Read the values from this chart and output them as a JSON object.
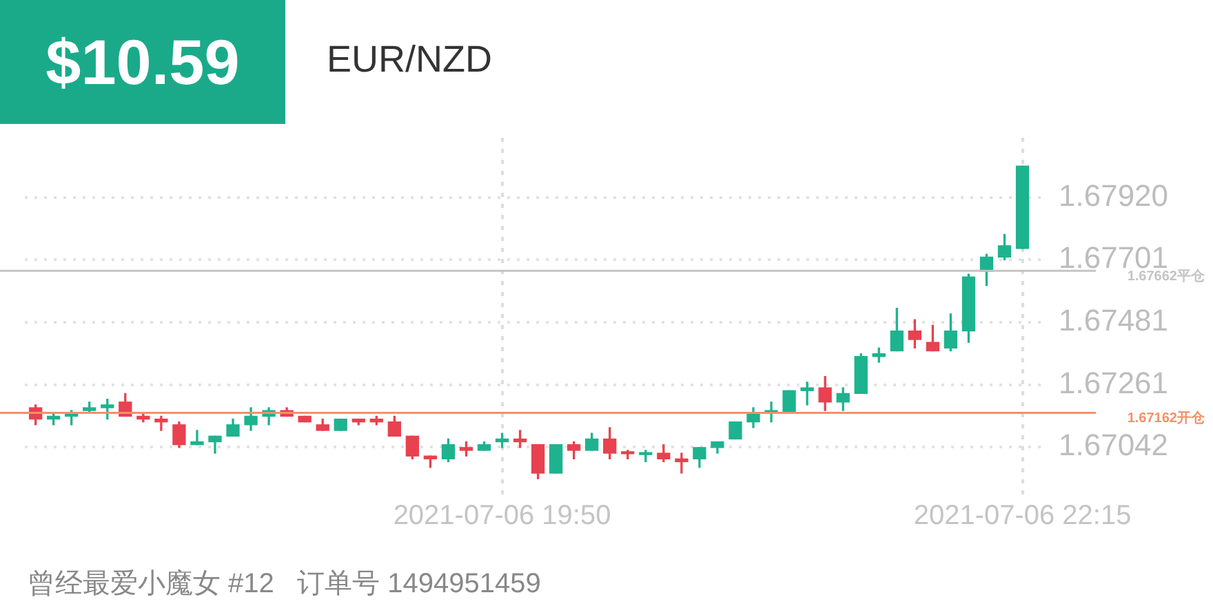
{
  "chart_data": {
    "type": "candlestick",
    "title": "EUR/NZD",
    "annotations": [
      "$10.59",
      "曾经最爱小魔女 #12   订单号 1494951459"
    ],
    "x": [
      "2021-07-06T17:40",
      "2021-07-06T17:45",
      "2021-07-06T17:50",
      "2021-07-06T17:55",
      "2021-07-06T18:00",
      "2021-07-06T18:05",
      "2021-07-06T18:10",
      "2021-07-06T18:15",
      "2021-07-06T18:20",
      "2021-07-06T18:25",
      "2021-07-06T18:30",
      "2021-07-06T18:35",
      "2021-07-06T18:40",
      "2021-07-06T18:45",
      "2021-07-06T18:50",
      "2021-07-06T18:55",
      "2021-07-06T19:00",
      "2021-07-06T19:05",
      "2021-07-06T19:10",
      "2021-07-06T19:15",
      "2021-07-06T19:20",
      "2021-07-06T19:25",
      "2021-07-06T19:30",
      "2021-07-06T19:35",
      "2021-07-06T19:40",
      "2021-07-06T19:45",
      "2021-07-06T19:50",
      "2021-07-06T19:55",
      "2021-07-06T20:00",
      "2021-07-06T20:05",
      "2021-07-06T20:10",
      "2021-07-06T20:15",
      "2021-07-06T20:20",
      "2021-07-06T20:25",
      "2021-07-06T20:30",
      "2021-07-06T20:35",
      "2021-07-06T20:40",
      "2021-07-06T20:45",
      "2021-07-06T20:50",
      "2021-07-06T20:55",
      "2021-07-06T21:00",
      "2021-07-06T21:05",
      "2021-07-06T21:10",
      "2021-07-06T21:15",
      "2021-07-06T21:20",
      "2021-07-06T21:25",
      "2021-07-06T21:30",
      "2021-07-06T21:35",
      "2021-07-06T21:40",
      "2021-07-06T21:45",
      "2021-07-06T21:50",
      "2021-07-06T21:55",
      "2021-07-06T22:00",
      "2021-07-06T22:05",
      "2021-07-06T22:10",
      "2021-07-06T22:15"
    ],
    "ohlc": [
      [
        1.6718,
        1.6719,
        1.6712,
        1.6714
      ],
      [
        1.6714,
        1.6716,
        1.6712,
        1.6715
      ],
      [
        1.6715,
        1.6717,
        1.6712,
        1.6716
      ],
      [
        1.6717,
        1.672,
        1.6716,
        1.6718
      ],
      [
        1.6718,
        1.6721,
        1.6714,
        1.6719
      ],
      [
        1.672,
        1.6723,
        1.6715,
        1.6715
      ],
      [
        1.6715,
        1.6716,
        1.6713,
        1.6714
      ],
      [
        1.6714,
        1.6715,
        1.671,
        1.6713
      ],
      [
        1.6712,
        1.6713,
        1.6704,
        1.6705
      ],
      [
        1.6705,
        1.671,
        1.6705,
        1.6706
      ],
      [
        1.6706,
        1.6708,
        1.6702,
        1.6708
      ],
      [
        1.6708,
        1.6714,
        1.6708,
        1.6712
      ],
      [
        1.6712,
        1.6718,
        1.671,
        1.6715
      ],
      [
        1.6715,
        1.6718,
        1.6712,
        1.6717
      ],
      [
        1.6717,
        1.6718,
        1.6715,
        1.6715
      ],
      [
        1.6715,
        1.6715,
        1.6713,
        1.6713
      ],
      [
        1.6712,
        1.6714,
        1.671,
        1.671
      ],
      [
        1.671,
        1.6714,
        1.671,
        1.6714
      ],
      [
        1.6714,
        1.6714,
        1.6712,
        1.6713
      ],
      [
        1.6714,
        1.6715,
        1.6712,
        1.6713
      ],
      [
        1.6713,
        1.6715,
        1.6708,
        1.6708
      ],
      [
        1.6708,
        1.6708,
        1.67,
        1.6701
      ],
      [
        1.6701,
        1.6701,
        1.6697,
        1.67
      ],
      [
        1.67,
        1.6707,
        1.6699,
        1.6705
      ],
      [
        1.6704,
        1.6706,
        1.6701,
        1.6703
      ],
      [
        1.6703,
        1.6706,
        1.6703,
        1.6705
      ],
      [
        1.6706,
        1.6709,
        1.6704,
        1.6707
      ],
      [
        1.6707,
        1.671,
        1.6704,
        1.6706
      ],
      [
        1.6705,
        1.6705,
        1.6693,
        1.6695
      ],
      [
        1.6695,
        1.6705,
        1.6695,
        1.6705
      ],
      [
        1.6705,
        1.6706,
        1.67,
        1.6703
      ],
      [
        1.6703,
        1.6709,
        1.6703,
        1.6707
      ],
      [
        1.6707,
        1.6711,
        1.67,
        1.6702
      ],
      [
        1.67022,
        1.6703,
        1.67,
        1.67018
      ],
      [
        1.67015,
        1.6703,
        1.6699,
        1.6702
      ],
      [
        1.6702,
        1.6705,
        1.6699,
        1.67
      ],
      [
        1.67,
        1.6702,
        1.6695,
        1.6699
      ],
      [
        1.67,
        1.6704,
        1.6697,
        1.6704
      ],
      [
        1.6704,
        1.6706,
        1.6702,
        1.6706
      ],
      [
        1.6707,
        1.6713,
        1.6707,
        1.6713
      ],
      [
        1.6713,
        1.6718,
        1.6711,
        1.6716
      ],
      [
        1.6716,
        1.672,
        1.6713,
        1.6717
      ],
      [
        1.6716,
        1.6724,
        1.6716,
        1.6724
      ],
      [
        1.6724,
        1.6727,
        1.6719,
        1.6725
      ],
      [
        1.6725,
        1.6729,
        1.6717,
        1.672
      ],
      [
        1.672,
        1.6725,
        1.6717,
        1.6723
      ],
      [
        1.6723,
        1.6737,
        1.6723,
        1.6736
      ],
      [
        1.6736,
        1.6739,
        1.6734,
        1.6737
      ],
      [
        1.6738,
        1.6753,
        1.6738,
        1.6745
      ],
      [
        1.6745,
        1.6749,
        1.6739,
        1.6742
      ],
      [
        1.6741,
        1.6747,
        1.6738,
        1.6738
      ],
      [
        1.6739,
        1.6751,
        1.6738,
        1.6745
      ],
      [
        1.6745,
        1.6765,
        1.6741,
        1.6764
      ],
      [
        1.6766,
        1.6772,
        1.6761,
        1.6771
      ],
      [
        1.6771,
        1.6779,
        1.677,
        1.6775
      ],
      [
        1.6774,
        1.6803,
        1.6774,
        1.6803
      ]
    ],
    "colors": [
      "#e8414f",
      "#1db38e",
      "#1db38e",
      "#1db38e",
      "#1db38e",
      "#e8414f",
      "#e8414f",
      "#e8414f",
      "#e8414f",
      "#1db38e",
      "#1db38e",
      "#1db38e",
      "#1db38e",
      "#1db38e",
      "#e8414f",
      "#e8414f",
      "#e8414f",
      "#1db38e",
      "#e8414f",
      "#e8414f",
      "#e8414f",
      "#e8414f",
      "#e8414f",
      "#1db38e",
      "#e8414f",
      "#1db38e",
      "#1db38e",
      "#e8414f",
      "#e8414f",
      "#1db38e",
      "#e8414f",
      "#1db38e",
      "#e8414f",
      "#e8414f",
      "#1db38e",
      "#e8414f",
      "#e8414f",
      "#1db38e",
      "#1db38e",
      "#1db38e",
      "#1db38e",
      "#1db38e",
      "#1db38e",
      "#1db38e",
      "#e8414f",
      "#1db38e",
      "#1db38e",
      "#1db38e",
      "#1db38e",
      "#e8414f",
      "#e8414f",
      "#1db38e",
      "#1db38e",
      "#1db38e",
      "#1db38e",
      "#1db38e"
    ],
    "xlim": [
      "2021-07-06T17:37",
      "2021-07-06T22:22"
    ],
    "xticks": [
      {
        "value": "2021-07-06T19:50",
        "label": "2021-07-06 19:50"
      },
      {
        "value": "2021-07-06T22:15",
        "label": "2021-07-06 22:15"
      }
    ],
    "ylim": [
      1.6687,
      1.6813
    ],
    "yticks": [
      1.67042,
      1.67261,
      1.67481,
      1.67701,
      {
        "value": 1.6792,
        "label": "1.67920"
      }
    ],
    "ref_lines": [
      {
        "axis": "y",
        "value": 1.67662,
        "label": "1.67662平仓",
        "color": "#c4c4c4"
      },
      {
        "axis": "y",
        "value": 1.67162,
        "label": "1.67162开仓",
        "color": "#f4906a"
      }
    ],
    "grid": true,
    "legend": false
  }
}
